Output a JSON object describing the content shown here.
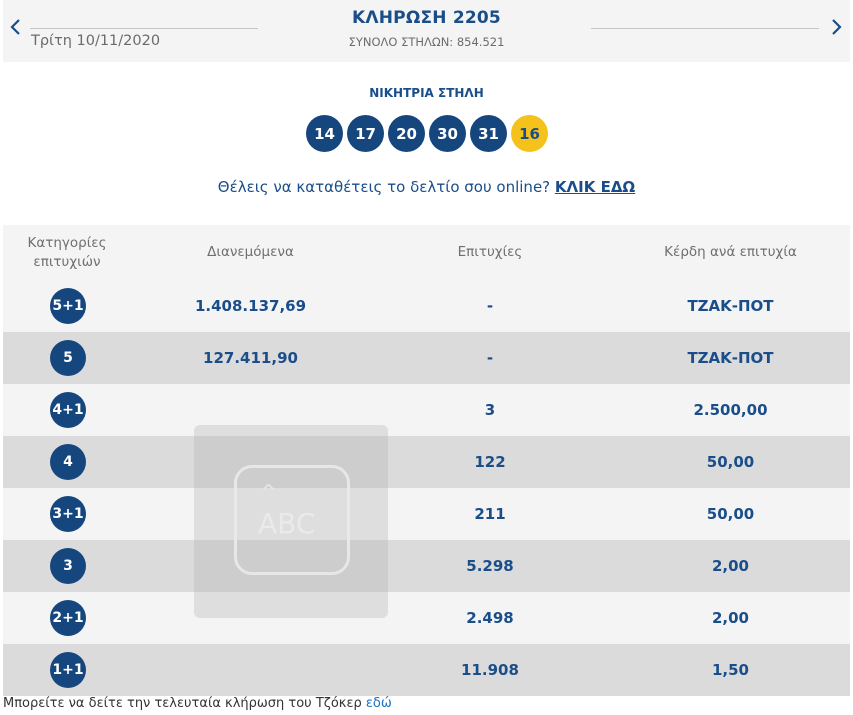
{
  "header": {
    "date": "Τρίτη 10/11/2020",
    "title": "ΚΛΗΡΩΣΗ 2205",
    "total_columns": "ΣΥΝΟΛΟ ΣΤΗΛΩΝ: 854.521",
    "prev_icon": "chevron-left-icon",
    "next_icon": "chevron-right-icon"
  },
  "winning": {
    "title": "ΝΙΚΗΤΡΙΑ ΣΤΗΛΗ",
    "numbers": [
      "14",
      "17",
      "20",
      "30",
      "31"
    ],
    "joker": "16"
  },
  "online": {
    "text": "Θέλεις να καταθέτεις το δελτίο σου online?",
    "link": "ΚΛΙΚ ΕΔΩ"
  },
  "table": {
    "headers": {
      "category_line1": "Κατηγορίες",
      "category_line2": "επιτυχιών",
      "distributed": "Διανεμόμενα",
      "winners": "Επιτυχίες",
      "prize": "Κέρδη ανά επιτυχία"
    },
    "rows": [
      {
        "category": "5+1",
        "distributed": "1.408.137,69",
        "winners": "-",
        "prize": "ΤΖΑΚ-ΠΟΤ"
      },
      {
        "category": "5",
        "distributed": "127.411,90",
        "winners": "-",
        "prize": "ΤΖΑΚ-ΠΟΤ"
      },
      {
        "category": "4+1",
        "distributed": "",
        "winners": "3",
        "prize": "2.500,00"
      },
      {
        "category": "4",
        "distributed": "",
        "winners": "122",
        "prize": "50,00"
      },
      {
        "category": "3+1",
        "distributed": "",
        "winners": "211",
        "prize": "50,00"
      },
      {
        "category": "3",
        "distributed": "",
        "winners": "5.298",
        "prize": "2,00"
      },
      {
        "category": "2+1",
        "distributed": "",
        "winners": "2.498",
        "prize": "2,00"
      },
      {
        "category": "1+1",
        "distributed": "",
        "winners": "11.908",
        "prize": "1,50"
      }
    ]
  },
  "watermark": {
    "text": "ABC",
    "icon": "keyboard-abc-icon"
  },
  "footer": {
    "text": "Μπορείτε να δείτε την τελευταία κλήρωση του Τζόκερ",
    "link": "εδώ"
  },
  "colors": {
    "primary_blue": "#16467e",
    "joker_yellow": "#f5c21c",
    "row_light": "#f4f4f4",
    "row_dark": "#dbdbdb"
  }
}
